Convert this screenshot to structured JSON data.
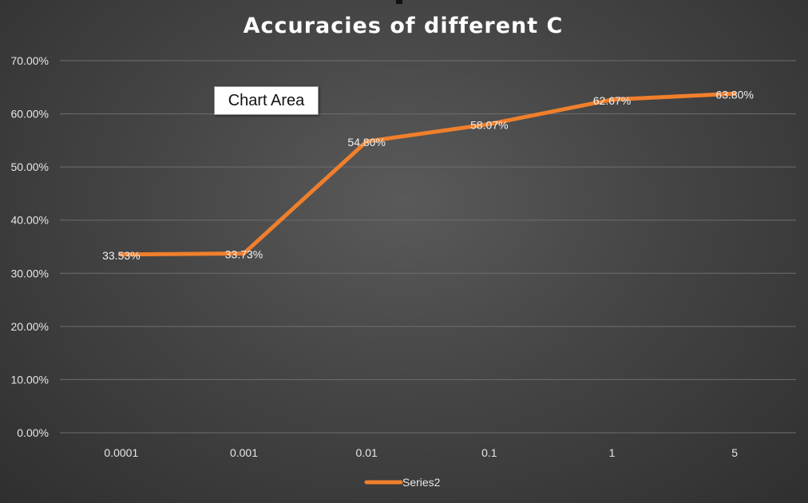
{
  "tooltip": {
    "text": "Chart Area"
  },
  "chart_data": {
    "type": "line",
    "title": "Accuracies of different C",
    "categories": [
      "0.0001",
      "0.001",
      "0.01",
      "0.1",
      "1",
      "5"
    ],
    "series": [
      {
        "name": "Series2",
        "values": [
          33.53,
          33.73,
          54.8,
          58.07,
          62.67,
          63.8
        ],
        "data_labels": [
          "33.53%",
          "33.73%",
          "54.80%",
          "58.07%",
          "62.67%",
          "63.80%"
        ],
        "color": "#f07f2c"
      }
    ],
    "ylim": [
      0,
      70
    ],
    "yticks": [
      "0.00%",
      "10.00%",
      "20.00%",
      "30.00%",
      "40.00%",
      "50.00%",
      "60.00%",
      "70.00%"
    ],
    "xlabel": "",
    "ylabel": "",
    "grid": true,
    "legend": "bottom"
  },
  "colors": {
    "series": "#f07f2c",
    "gridline": "#6e6e6e",
    "text": "#e6e6e6"
  }
}
